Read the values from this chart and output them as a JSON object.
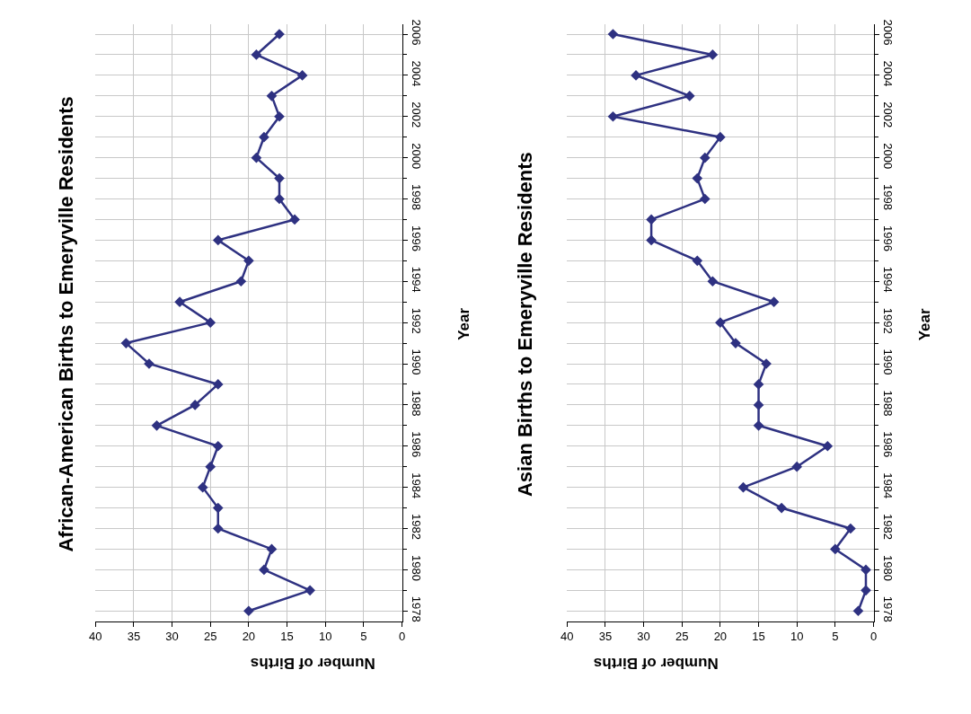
{
  "chart_data": [
    {
      "type": "line",
      "orientation": "horizontal",
      "title": "African-American Births to Emeryville Residents",
      "xlabel": "Number of Births",
      "ylabel": "Year",
      "categories": [
        "2006",
        null,
        "2004",
        null,
        "2002",
        null,
        "2000",
        null,
        "1998",
        null,
        "1996",
        null,
        "1994",
        null,
        "1992",
        null,
        "1990",
        null,
        "1988",
        null,
        "1986",
        null,
        "1984",
        null,
        "1982",
        null,
        "1980",
        null,
        "1978"
      ],
      "series": [
        {
          "color": "#2e3181",
          "values": [
            16,
            19,
            13,
            17,
            16,
            18,
            19,
            16,
            16,
            14,
            24,
            20,
            21,
            29,
            25,
            36,
            33,
            24,
            27,
            32,
            24,
            25,
            26,
            24,
            24,
            17,
            18,
            12,
            20
          ]
        }
      ],
      "xlim": [
        40,
        0
      ],
      "xticks": [
        0,
        5,
        10,
        15,
        20,
        25,
        30,
        35,
        40
      ],
      "grid": true,
      "marker": "diamond",
      "line_style": "solid"
    },
    {
      "type": "line",
      "orientation": "horizontal",
      "title": "Asian Births to Emeryville Residents",
      "xlabel": "Number of Births",
      "ylabel": "Year",
      "categories": [
        "2006",
        null,
        "2004",
        null,
        "2002",
        null,
        "2000",
        null,
        "1998",
        null,
        "1996",
        null,
        "1994",
        null,
        "1992",
        null,
        "1990",
        null,
        "1988",
        null,
        "1986",
        null,
        "1984",
        null,
        "1982",
        null,
        "1980",
        null,
        "1978"
      ],
      "series": [
        {
          "color": "#2e3181",
          "values": [
            34,
            21,
            31,
            24,
            34,
            20,
            22,
            23,
            22,
            29,
            29,
            23,
            21,
            13,
            20,
            18,
            14,
            15,
            15,
            15,
            6,
            10,
            17,
            12,
            3,
            5,
            1,
            1,
            2
          ]
        }
      ],
      "xlim": [
        40,
        0
      ],
      "xticks": [
        0,
        5,
        10,
        15,
        20,
        25,
        30,
        35,
        40
      ],
      "grid": true,
      "marker": "diamond",
      "line_style": "solid"
    }
  ]
}
